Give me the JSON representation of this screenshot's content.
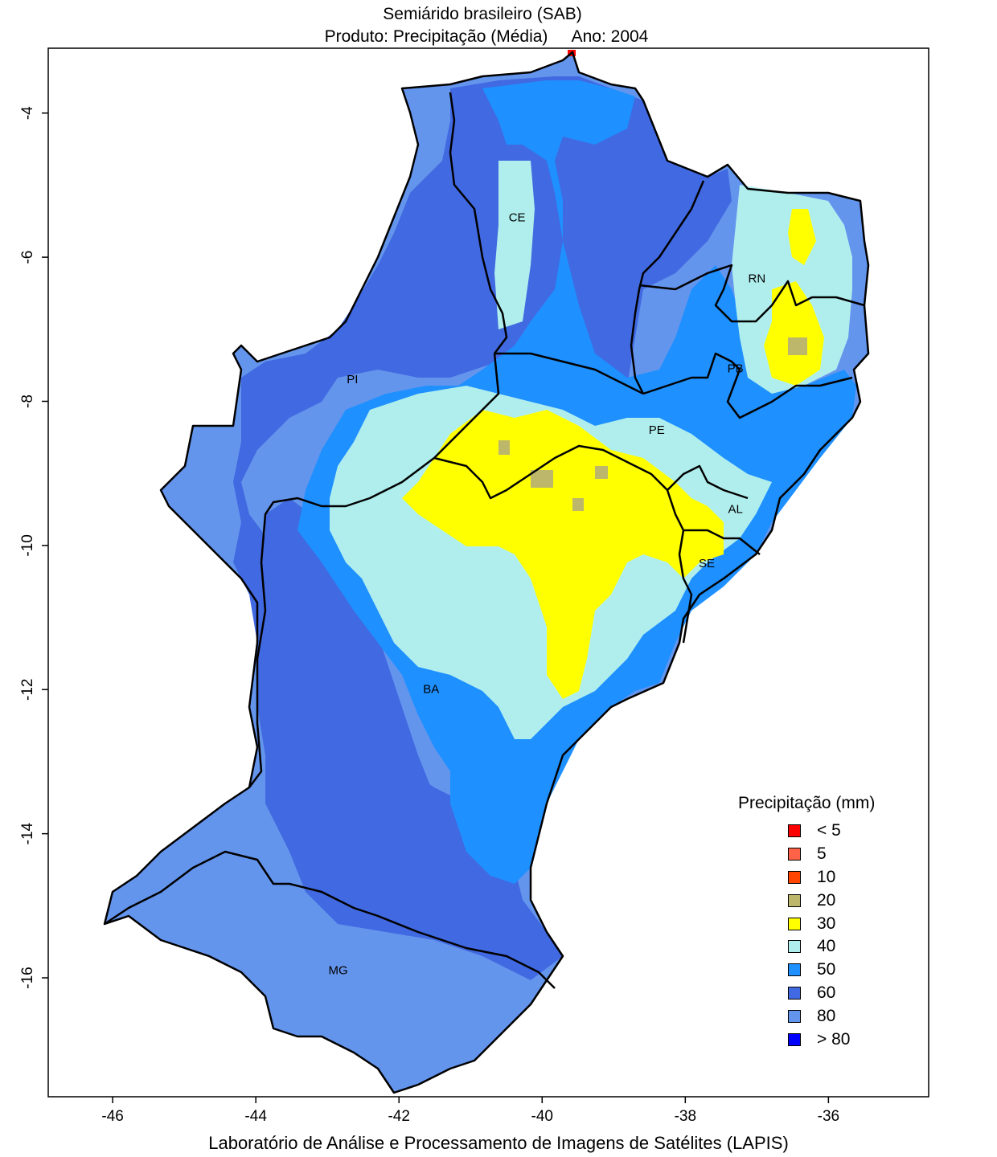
{
  "title": "Semiárido brasileiro (SAB)",
  "subtitle": {
    "product": "Produto: Precipitação (Média)",
    "year": "Ano:  2004"
  },
  "footer": "Laboratório de Análise e Processamento de Imagens de Satélites (LAPIS)",
  "axes": {
    "x_ticks": [
      {
        "value": -46,
        "label": "-46"
      },
      {
        "value": -44,
        "label": "-44"
      },
      {
        "value": -42,
        "label": "-42"
      },
      {
        "value": -40,
        "label": "-40"
      },
      {
        "value": -38,
        "label": "-38"
      },
      {
        "value": -36,
        "label": "-36"
      }
    ],
    "y_ticks": [
      {
        "value": -4,
        "label": "-4"
      },
      {
        "value": -6,
        "label": "-6"
      },
      {
        "value": -8,
        "label": "-8"
      },
      {
        "value": -10,
        "label": "-10"
      },
      {
        "value": -12,
        "label": "-12"
      },
      {
        "value": -14,
        "label": "-14"
      },
      {
        "value": -16,
        "label": "-16"
      }
    ],
    "xlim": [
      -46.9,
      -34.6
    ],
    "ylim": [
      -17.65,
      -3.1
    ]
  },
  "legend": {
    "title": "Precipitação (mm)",
    "items": [
      {
        "label": "< 5",
        "color": "#ff0000"
      },
      {
        "label": "5",
        "color": "#ff6347"
      },
      {
        "label": "10",
        "color": "#ff4500"
      },
      {
        "label": "20",
        "color": "#bdb76b"
      },
      {
        "label": "30",
        "color": "#ffff00"
      },
      {
        "label": "40",
        "color": "#b0eeee"
      },
      {
        "label": "50",
        "color": "#1e90ff"
      },
      {
        "label": "60",
        "color": "#4169e1"
      },
      {
        "label": "80",
        "color": "#6495ed"
      },
      {
        "label": "> 80",
        "color": "#0000ff"
      }
    ]
  },
  "states": [
    {
      "label": "CE",
      "lon": -40.35,
      "lat": -5.5
    },
    {
      "label": "RN",
      "lon": -37.0,
      "lat": -6.35
    },
    {
      "label": "PB",
      "lon": -37.3,
      "lat": -7.6
    },
    {
      "label": "PI",
      "lon": -42.65,
      "lat": -7.75
    },
    {
      "label": "PE",
      "lon": -38.4,
      "lat": -8.45
    },
    {
      "label": "AL",
      "lon": -37.3,
      "lat": -9.55
    },
    {
      "label": "SE",
      "lon": -37.7,
      "lat": -10.3
    },
    {
      "label": "BA",
      "lon": -41.55,
      "lat": -12.05
    },
    {
      "label": "MG",
      "lon": -42.85,
      "lat": -15.95
    }
  ]
}
